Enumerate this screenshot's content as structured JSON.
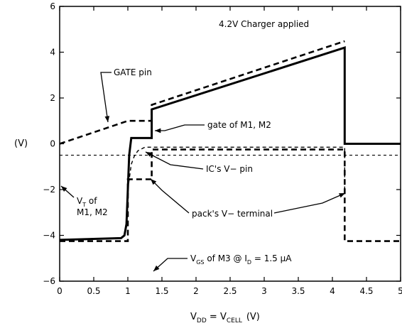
{
  "chart_data": {
    "type": "line",
    "title": "",
    "xlabel": {
      "main": "V",
      "sub": "DD",
      "mid": " = V",
      "sub2": "CELL",
      "unit": "(V)"
    },
    "ylabel": "(V)",
    "xlim": [
      0,
      5
    ],
    "ylim": [
      -6,
      6
    ],
    "x_ticks": [
      0,
      0.5,
      1,
      1.5,
      2,
      2.5,
      3,
      3.5,
      4,
      4.5,
      5
    ],
    "x_tick_labels": [
      "0",
      "0.5",
      "1",
      "1.5",
      "2",
      "2.5",
      "3",
      "3.5",
      "4",
      "4.5",
      "5"
    ],
    "y_ticks": [
      -6,
      -4,
      -2,
      0,
      2,
      4,
      6
    ],
    "y_tick_labels": [
      "−6",
      "−4",
      "−2",
      "0",
      "2",
      "4",
      "6"
    ],
    "grid": false,
    "legend": "none",
    "series": [
      {
        "style": "solid-thick",
        "x": [
          0,
          0.9,
          0.95,
          0.98,
          1.0,
          1.02,
          1.05,
          1.35,
          1.35,
          4.18,
          4.18,
          5
        ],
        "y": [
          -4.2,
          -4.12,
          -4.0,
          -3.5,
          -2.0,
          -0.5,
          0.25,
          0.25,
          1.5,
          4.2,
          0,
          0
        ]
      },
      {
        "style": "dashed-thick",
        "x": [
          0,
          0.8,
          1.0,
          1.0,
          1.35,
          1.35,
          1.35,
          4.18
        ],
        "y": [
          0,
          0.8,
          1.0,
          1.0,
          1.0,
          1.6,
          1.7,
          4.48
        ]
      },
      {
        "style": "dashed-thick",
        "x": [
          0,
          1.0,
          1.0,
          1.35,
          1.35,
          4.18,
          4.18,
          5
        ],
        "y": [
          -4.25,
          -4.25,
          -1.55,
          -1.55,
          -0.25,
          -0.25,
          -4.25,
          -4.25
        ]
      },
      {
        "style": "dashed-thin",
        "x": [
          1.0,
          1.05,
          1.1,
          1.15,
          1.25,
          4.18,
          4.18
        ],
        "y": [
          -2.0,
          -0.9,
          -0.5,
          -0.3,
          -0.15,
          -0.15,
          -2.2
        ]
      },
      {
        "style": "dashed-thin-hline",
        "x": [
          0,
          5
        ],
        "y": [
          -0.5,
          -0.5
        ]
      }
    ],
    "annotations": {
      "charger": "4.2V Charger applied",
      "gate_pin": "GATE pin",
      "gate_m1m2": "gate of M1, M2",
      "ic_v": "IC's V− pin",
      "vt_a": "V",
      "vt_sub": "T",
      "vt_b": " of",
      "vt_c": "M1, M2",
      "pack": "pack's V− terminal",
      "vgs_a": "V",
      "vgs_sub": "GS",
      "vgs_b": " of M3 @ I",
      "vgs_sub2": "D",
      "vgs_c": " = 1.5 μA"
    }
  }
}
